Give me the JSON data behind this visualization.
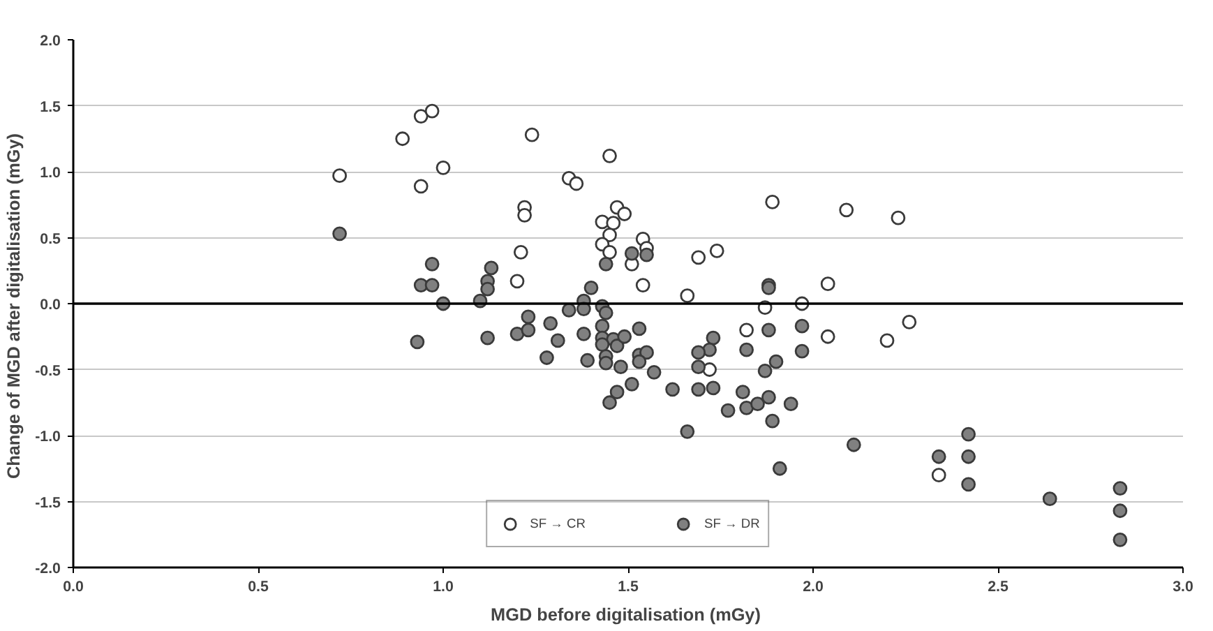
{
  "chart_data": {
    "type": "scatter",
    "xlabel": "MGD before digitalisation  (mGy)",
    "ylabel": "Change of MGD after digitalisation  (mGy)",
    "xlim": [
      0,
      3.0
    ],
    "ylim": [
      -2.0,
      2.0
    ],
    "xticks": [
      {
        "value": 0,
        "label": "0.0"
      },
      {
        "value": 0.5,
        "label": "0.5"
      },
      {
        "value": 1,
        "label": "1.0"
      },
      {
        "value": 1.5,
        "label": "1.5"
      },
      {
        "value": 2,
        "label": "2.0"
      },
      {
        "value": 2.5,
        "label": "2.5"
      },
      {
        "value": 3,
        "label": "3.0"
      }
    ],
    "yticks": [
      {
        "value": -2,
        "label": "-2.0"
      },
      {
        "value": -1.5,
        "label": "-1.5"
      },
      {
        "value": -1,
        "label": "-1.0"
      },
      {
        "value": -0.5,
        "label": "-0.5"
      },
      {
        "value": 0,
        "label": "0.0"
      },
      {
        "value": 0.5,
        "label": "0.5"
      },
      {
        "value": 1,
        "label": "1.0"
      },
      {
        "value": 1.5,
        "label": "1.5"
      },
      {
        "value": 2,
        "label": "2.0"
      }
    ],
    "grid": "y",
    "legend": "bottom",
    "marker": "circle",
    "ref_lines": [
      {
        "axis": "y",
        "value": 0,
        "color": "#000000"
      }
    ],
    "series": [
      {
        "name": "SF → CR",
        "color": "#ffffff",
        "x": [
          0.72,
          0.89,
          0.94,
          0.97,
          0.94,
          1.0,
          1.24,
          1.22,
          1.22,
          1.21,
          1.2,
          1.34,
          1.36,
          1.45,
          1.47,
          1.49,
          1.43,
          1.46,
          1.45,
          1.43,
          1.45,
          1.54,
          1.55,
          1.51,
          1.54,
          1.69,
          1.74,
          1.66,
          1.89,
          2.09,
          2.23,
          2.04,
          1.88,
          1.87,
          1.97,
          1.82,
          2.04,
          2.2,
          2.26,
          1.72,
          2.34
        ],
        "values": [
          0.97,
          1.25,
          1.42,
          1.46,
          0.89,
          1.03,
          1.28,
          0.73,
          0.67,
          0.39,
          0.17,
          0.95,
          0.91,
          1.12,
          0.73,
          0.68,
          0.62,
          0.61,
          0.52,
          0.45,
          0.39,
          0.49,
          0.42,
          0.3,
          0.14,
          0.35,
          0.4,
          0.06,
          0.77,
          0.71,
          0.65,
          0.15,
          null,
          -0.03,
          0.0,
          -0.2,
          -0.25,
          -0.28,
          -0.14,
          -0.5,
          -1.3
        ]
      },
      {
        "name": "SF → DR",
        "color": "#808080",
        "x": [
          0.72,
          0.97,
          0.94,
          0.97,
          1.0,
          0.93,
          1.1,
          1.13,
          1.12,
          1.12,
          1.12,
          1.23,
          1.2,
          1.23,
          1.29,
          1.31,
          1.28,
          1.34,
          1.38,
          1.38,
          1.4,
          1.38,
          1.39,
          1.44,
          1.43,
          1.44,
          1.43,
          1.43,
          1.46,
          1.43,
          1.47,
          1.49,
          1.44,
          1.44,
          1.48,
          1.53,
          1.53,
          1.55,
          1.53,
          1.57,
          1.51,
          1.47,
          1.45,
          1.51,
          1.55,
          1.73,
          1.72,
          1.69,
          1.69,
          1.62,
          1.69,
          1.73,
          1.66,
          1.77,
          1.81,
          1.82,
          1.85,
          1.88,
          1.89,
          1.94,
          1.91,
          1.82,
          1.87,
          1.9,
          1.88,
          1.97,
          1.97,
          1.88,
          1.88,
          2.11,
          2.34,
          2.42,
          2.42,
          2.42,
          2.64,
          2.83,
          2.83,
          2.83
        ],
        "values": [
          0.53,
          0.3,
          0.14,
          0.14,
          0.0,
          -0.29,
          0.02,
          0.27,
          0.17,
          0.11,
          -0.26,
          -0.1,
          -0.23,
          -0.2,
          -0.15,
          -0.28,
          -0.41,
          -0.05,
          0.02,
          -0.04,
          0.12,
          -0.23,
          -0.43,
          0.3,
          -0.02,
          -0.07,
          -0.17,
          -0.26,
          -0.27,
          -0.31,
          -0.32,
          -0.25,
          -0.4,
          -0.45,
          -0.48,
          -0.19,
          -0.39,
          -0.37,
          -0.44,
          -0.52,
          -0.61,
          -0.67,
          -0.75,
          0.38,
          0.37,
          -0.26,
          -0.35,
          -0.37,
          -0.48,
          -0.65,
          -0.65,
          -0.64,
          -0.97,
          -0.81,
          -0.67,
          -0.79,
          -0.76,
          -0.71,
          -0.89,
          -0.76,
          -1.25,
          -0.35,
          -0.51,
          -0.44,
          -0.2,
          -0.17,
          -0.36,
          0.14,
          0.12,
          -1.07,
          -1.16,
          -0.99,
          -1.16,
          -1.37,
          -1.48,
          -1.4,
          -1.57,
          -1.79
        ]
      }
    ]
  }
}
